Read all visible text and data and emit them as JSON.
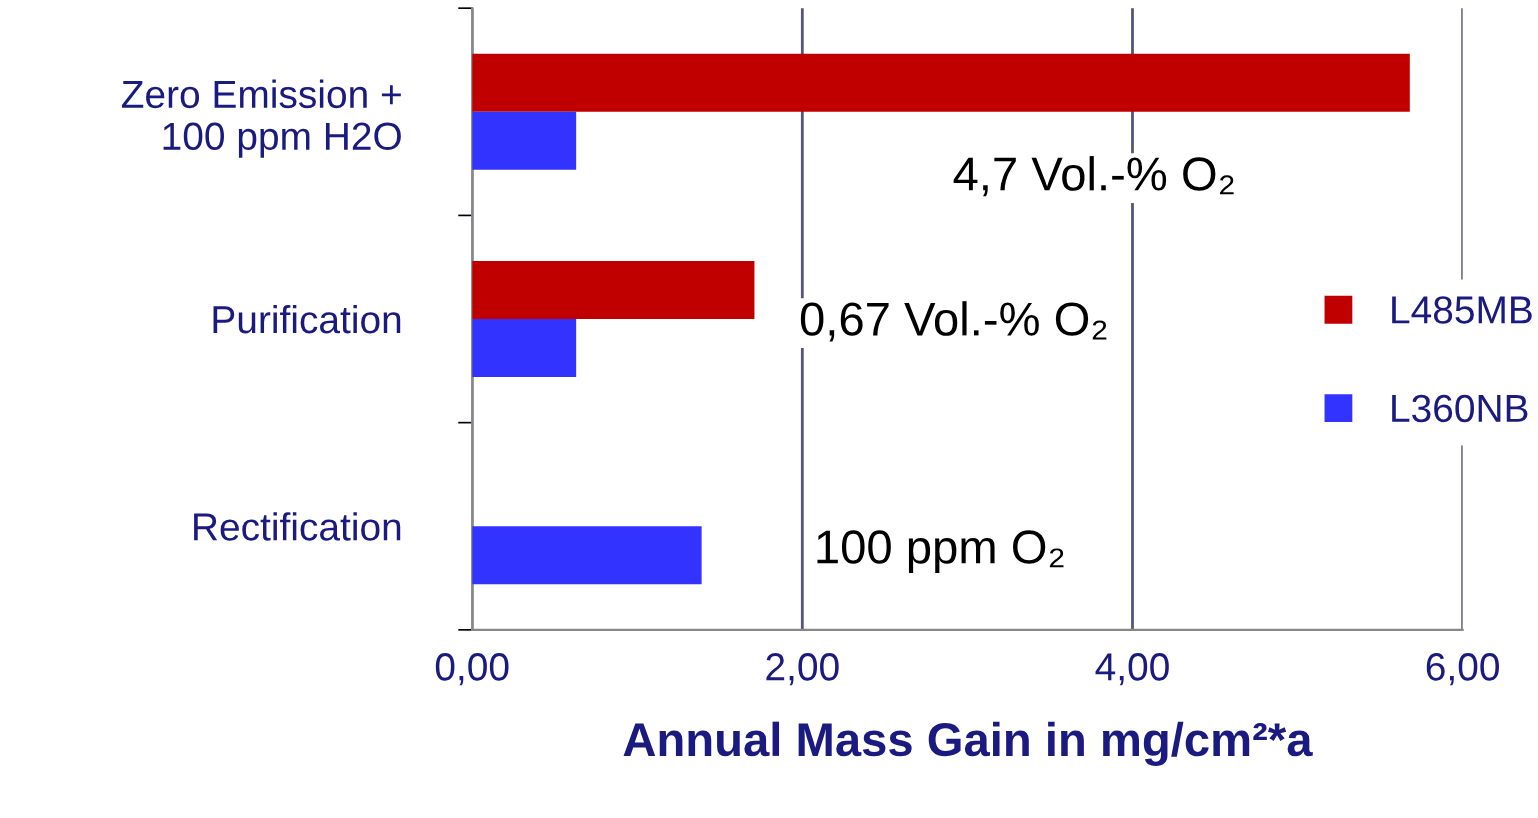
{
  "chart_data": {
    "type": "bar",
    "orientation": "horizontal",
    "xlabel": "Annual Mass Gain in mg/cm²*a",
    "categories": [
      "Zero Emission +\n100 ppm H2O",
      "Purification",
      "Rectification"
    ],
    "series": [
      {
        "name": "L485MB",
        "color": "#c00000",
        "values": [
          5.68,
          1.71,
          null
        ]
      },
      {
        "name": "L360NB",
        "color": "#3333ff",
        "values": [
          0.63,
          0.63,
          1.39
        ]
      }
    ],
    "xlim": [
      0,
      6
    ],
    "xticks": [
      {
        "value": 0,
        "label": "0,00"
      },
      {
        "value": 2,
        "label": "2,00"
      },
      {
        "value": 4,
        "label": "4,00"
      },
      {
        "value": 6,
        "label": "6,00"
      }
    ],
    "grid": "x",
    "legend": "right",
    "marker": "square",
    "annotations": [
      "4,7 Vol.-% O₂",
      "0,67 Vol.-% O₂",
      "100 ppm O₂"
    ]
  }
}
